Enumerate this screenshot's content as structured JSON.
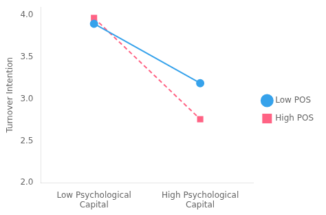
{
  "chart_data": {
    "type": "line",
    "categories": [
      "Low Psychological\nCapital",
      "High Psychological\nCapital"
    ],
    "series": [
      {
        "name": "Low POS",
        "values": [
          3.9,
          3.19
        ],
        "marker": "circle",
        "line_style": "solid"
      },
      {
        "name": "High POS",
        "values": [
          3.97,
          2.76
        ],
        "marker": "square",
        "line_style": "dashed"
      }
    ],
    "ylabel": "Turnover Intention",
    "ylim": [
      2,
      4.1
    ],
    "yticks": [
      {
        "value": 2.0,
        "label": "2.0"
      },
      2.5,
      {
        "value": 3.0,
        "label": "3.0"
      },
      3.5,
      {
        "value": 4.0,
        "label": "4.0"
      }
    ],
    "grid": false,
    "legend": "right"
  }
}
